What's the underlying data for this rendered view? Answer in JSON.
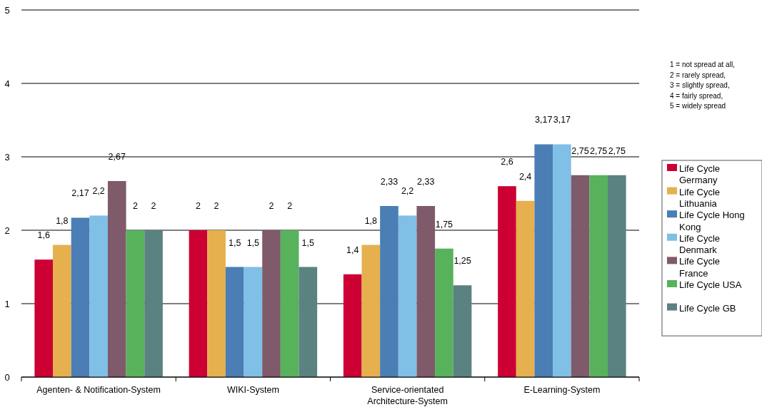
{
  "chart_data": {
    "type": "bar",
    "categories": [
      "Agenten- & Notification-System",
      "WIKI-System",
      "Service-orientated Architecture-System",
      "E-Learning-System"
    ],
    "series": [
      {
        "name": "Life Cycle Germany",
        "color": "#cc0033",
        "values": [
          1.6,
          2,
          1.4,
          2.6
        ],
        "value_labels": [
          "1,6",
          "2",
          "1,4",
          "2,6"
        ]
      },
      {
        "name": "Life Cycle Lithuania",
        "color": "#e6b04e",
        "values": [
          1.8,
          2,
          1.8,
          2.4
        ],
        "value_labels": [
          "1,8",
          "2",
          "1,8",
          "2,4"
        ]
      },
      {
        "name": "Life Cycle Hong Kong",
        "color": "#4a7eb4",
        "values": [
          2.17,
          1.5,
          2.33,
          3.17
        ],
        "value_labels": [
          "2,17",
          "1,5",
          "2,33",
          "3,17"
        ]
      },
      {
        "name": "Life Cycle Denmark",
        "color": "#80bfe6",
        "values": [
          2.2,
          1.5,
          2.2,
          3.17
        ],
        "value_labels": [
          "2,2",
          "1,5",
          "2,2",
          "3,17"
        ]
      },
      {
        "name": "Life Cycle France",
        "color": "#7f5a6a",
        "values": [
          2.67,
          2,
          2.33,
          2.75
        ],
        "value_labels": [
          "2,67",
          "2",
          "2,33",
          "2,75"
        ]
      },
      {
        "name": "Life Cycle USA",
        "color": "#58b25c",
        "values": [
          2,
          2,
          1.75,
          2.75
        ],
        "value_labels": [
          "2",
          "2",
          "1,75",
          "2,75"
        ]
      },
      {
        "name": "Life Cycle GB",
        "color": "#5a8280",
        "values": [
          2,
          1.5,
          1.25,
          2.75
        ],
        "value_labels": [
          "2",
          "1,5",
          "1,25",
          "2,75"
        ]
      }
    ],
    "ylim": [
      0,
      5
    ],
    "yticks": [
      0,
      1,
      2,
      3,
      4,
      5
    ],
    "grid": "y",
    "legend": "right",
    "annotations": [
      "1 = not spread at all,",
      "2 = rarely spread,",
      "3 = slightly spread,",
      "4 = fairly spread,",
      "5 = widely spread"
    ]
  }
}
